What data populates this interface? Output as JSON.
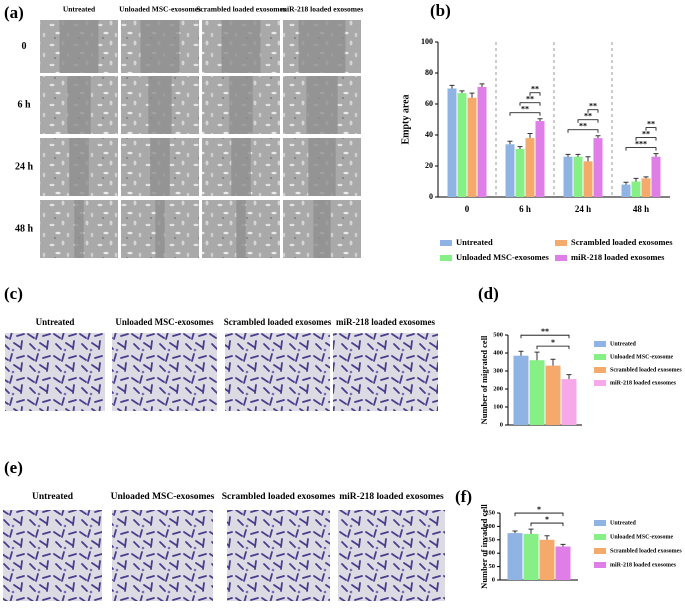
{
  "panel_a": {
    "label": "(a)",
    "columns": [
      "Untreated",
      "Unloaded MSC-exosomes",
      "Scrambled loaded exosomes",
      "miR-218 loaded exosomes"
    ],
    "rows": [
      "0",
      "6 h",
      "24 h",
      "48 h"
    ]
  },
  "panel_c": {
    "label": "(c)",
    "columns": [
      "Untreated",
      "Unloaded MSC-exosomes",
      "Scrambled loaded exosomes",
      "miR-218 loaded exosomes"
    ]
  },
  "panel_e": {
    "label": "(e)",
    "columns": [
      "Untreated",
      "Unloaded MSC-exosomes",
      "Scrambled loaded exosomes",
      "miR-218 loaded exosomes"
    ]
  },
  "chart_data": [
    {
      "type": "bar",
      "label": "(b)",
      "y_label": "Empty area",
      "categories": [
        "0",
        "6 h",
        "24 h",
        "48 h"
      ],
      "ylim": [
        0,
        100
      ],
      "yticks": [
        0,
        20,
        40,
        60,
        80,
        100
      ],
      "series": [
        {
          "name": "Untreated",
          "color": "#8fb4e3",
          "values": [
            70,
            34,
            26,
            8
          ],
          "errors": [
            2,
            2,
            1.5,
            1.5
          ]
        },
        {
          "name": "Unloaded MSC-exosomes",
          "color": "#86ef86",
          "values": [
            67,
            31,
            26,
            10
          ],
          "errors": [
            1.5,
            1.5,
            1.5,
            2
          ]
        },
        {
          "name": "Scrambled loaded exosomes",
          "color": "#f5aa6c",
          "values": [
            64,
            38,
            23,
            12
          ],
          "errors": [
            3,
            3,
            3,
            1
          ]
        },
        {
          "name": "miR-218 loaded exosomes",
          "color": "#e07ee8",
          "values": [
            71,
            49,
            38,
            26
          ],
          "errors": [
            2,
            1.5,
            1.5,
            2
          ]
        }
      ],
      "annotations": [
        "**",
        "**",
        "**",
        "**",
        "**",
        "**",
        "***",
        "**",
        "**"
      ]
    },
    {
      "type": "bar",
      "label": "(d)",
      "y_label": "Number of migrated cell",
      "ylim": [
        0,
        500
      ],
      "yticks": [
        0,
        100,
        200,
        300,
        400,
        500
      ],
      "series": [
        {
          "name": "Untreated",
          "color": "#8fb4e3",
          "values": [
            385
          ],
          "errors": [
            25
          ]
        },
        {
          "name": "Unloaded MSC-exosome",
          "color": "#86ef86",
          "values": [
            360
          ],
          "errors": [
            45
          ]
        },
        {
          "name": "Scrambled loaded exosomes",
          "color": "#f5aa6c",
          "values": [
            330
          ],
          "errors": [
            35
          ]
        },
        {
          "name": "miR-218 loaded exosomes",
          "color": "#f7a8e8",
          "values": [
            255
          ],
          "errors": [
            25
          ]
        }
      ],
      "annotations": [
        "**",
        "*"
      ]
    },
    {
      "type": "bar",
      "label": "(f)",
      "y_label": "Number of invaded cell",
      "ylim": [
        0,
        250
      ],
      "yticks": [
        0,
        50,
        100,
        150,
        200,
        250
      ],
      "series": [
        {
          "name": "Untreated",
          "color": "#8fb4e3",
          "values": [
            175
          ],
          "errors": [
            8
          ]
        },
        {
          "name": "Unloaded MSC-exosome",
          "color": "#86ef86",
          "values": [
            172
          ],
          "errors": [
            18
          ]
        },
        {
          "name": "Scrambled loaded exosomes",
          "color": "#f5aa6c",
          "values": [
            150
          ],
          "errors": [
            15
          ]
        },
        {
          "name": "miR-218 loaded exosomes",
          "color": "#e07ee8",
          "values": [
            125
          ],
          "errors": [
            8
          ]
        }
      ],
      "annotations": [
        "*",
        "*"
      ]
    }
  ]
}
